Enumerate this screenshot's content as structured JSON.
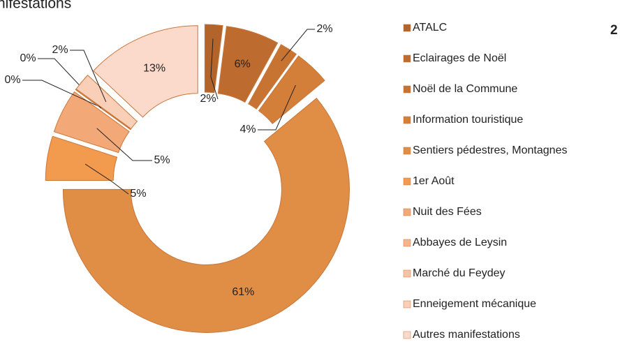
{
  "chart_data": {
    "type": "donut",
    "title": "nifestations",
    "annotation": "2",
    "categories": [
      "ATALC",
      "Eclairages de Noël",
      "Noël de la Commune",
      "Information touristique",
      "Sentiers pédestres, Montagnes",
      "1er Août",
      "Nuit des Fées",
      "Abbayes de Leysin",
      "Marché du Feydey",
      "Enneigement mécanique",
      "Autres manifestations"
    ],
    "values": [
      2,
      6,
      2,
      4,
      61,
      5,
      5,
      0,
      0,
      2,
      13
    ],
    "value_labels": [
      "2%",
      "6%",
      "2%",
      "4%",
      "61%",
      "5%",
      "5%",
      "0%",
      "0%",
      "2%",
      "13%"
    ],
    "colors": [
      "#b3642b",
      "#bd6b2f",
      "#c77432",
      "#d47f39",
      "#e08d45",
      "#f29a4e",
      "#f3a878",
      "#f5b48c",
      "#f7c3a5",
      "#f9cfb7",
      "#fbdacb"
    ],
    "legend": "right"
  }
}
